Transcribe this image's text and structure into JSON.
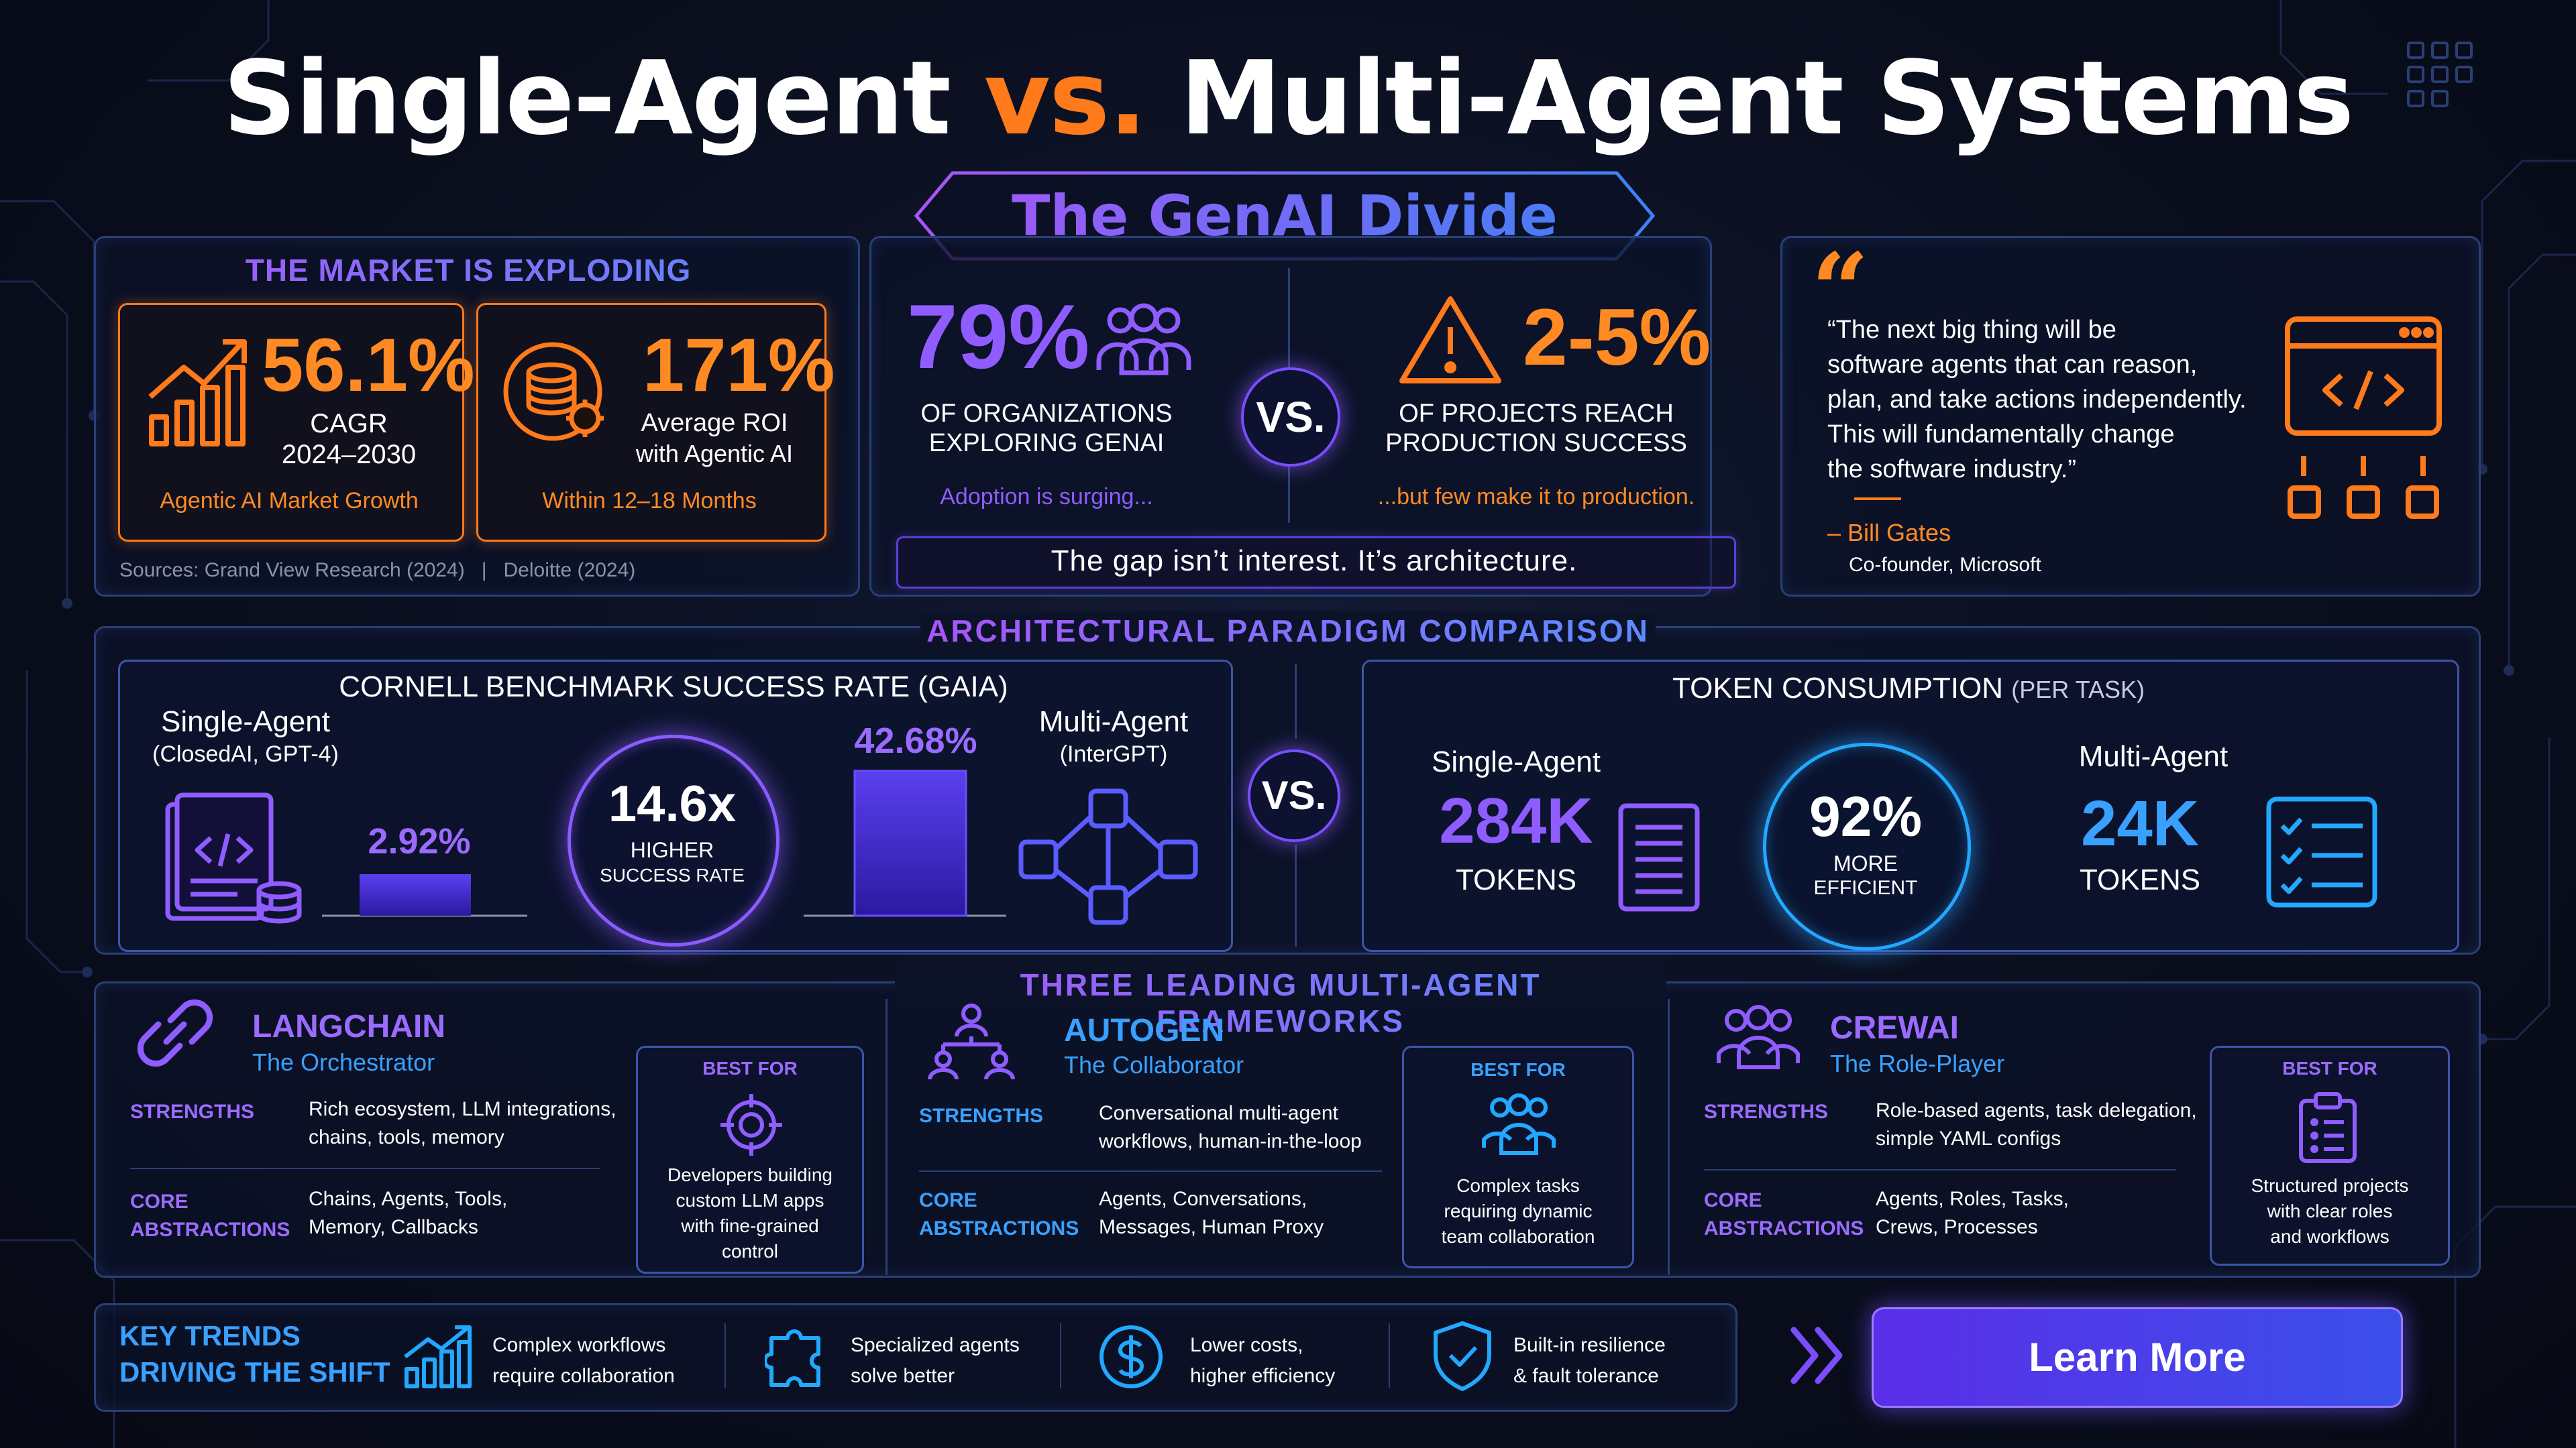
{
  "title": {
    "part1": "Single-Agent ",
    "vs": "vs.",
    "part2": " Multi-Agent Systems"
  },
  "banner": {
    "text": "The GenAI Divide"
  },
  "market": {
    "title": "THE MARKET IS EXPLODING",
    "card1": {
      "value": "56.1%",
      "line1": "CAGR",
      "line2": "2024–2030",
      "caption": "Agentic AI Market Growth"
    },
    "card2": {
      "value": "171%",
      "line1": "Average ROI",
      "line2": "with Agentic AI",
      "caption": "Within 12–18 Months"
    },
    "sources": "Sources: Grand View Research (2024)   |   Deloitte (2024)"
  },
  "divide": {
    "left": {
      "value": "79%",
      "line1": "OF ORGANIZATIONS",
      "line2": "EXPLORING GENAI",
      "note": "Adoption is surging..."
    },
    "vs": "VS.",
    "right": {
      "value": "2-5%",
      "line1": "OF PROJECTS REACH",
      "line2": "PRODUCTION SUCCESS",
      "note": "...but few make it to production."
    },
    "footer": "The gap isn’t interest. It’s architecture."
  },
  "quote": {
    "mark": "“",
    "lines": [
      "“The next big thing will be",
      "software agents that can reason,",
      "plan, and take actions independently.",
      "This will fundamentally change",
      "the software industry.”"
    ],
    "author": "– Bill Gates",
    "role": "Co-founder, Microsoft"
  },
  "paradigm": {
    "title": "ARCHITECTURAL PARADIGM COMPARISON",
    "benchmark": {
      "title": "CORNELL BENCHMARK SUCCESS RATE (GAIA)",
      "single_label": "Single-Agent",
      "single_sub": "(ClosedAI, GPT-4)",
      "single_value": "2.92%",
      "ring_value": "14.6x",
      "ring_line1": "HIGHER",
      "ring_line2": "SUCCESS RATE",
      "multi_value": "42.68%",
      "multi_label": "Multi-Agent",
      "multi_sub": "(InterGPT)"
    },
    "vs": "VS.",
    "tokens": {
      "title": "TOKEN CONSUMPTION",
      "title_sub": "(PER TASK)",
      "single_label": "Single-Agent",
      "single_value": "284K",
      "single_unit": "TOKENS",
      "ring_value": "92%",
      "ring_line1": "MORE",
      "ring_line2": "EFFICIENT",
      "multi_label": "Multi-Agent",
      "multi_value": "24K",
      "multi_unit": "TOKENS"
    }
  },
  "frameworks": {
    "title": "THREE LEADING MULTI-AGENT FRAMEWORKS",
    "items": [
      {
        "name": "LANGCHAIN",
        "tagline": "The Orchestrator",
        "strengths_label": "STRENGTHS",
        "strengths": [
          "Rich ecosystem, LLM integrations,",
          "chains, tools, memory"
        ],
        "core_label1": "CORE",
        "core_label2": "ABSTRACTIONS",
        "core": [
          "Chains, Agents, Tools,",
          "Memory, Callbacks"
        ],
        "best_label": "BEST FOR",
        "best": [
          "Developers building",
          "custom LLM apps",
          "with fine-grained",
          "control"
        ]
      },
      {
        "name": "AUTOGEN",
        "tagline": "The Collaborator",
        "strengths_label": "STRENGTHS",
        "strengths": [
          "Conversational multi-agent",
          "workflows, human-in-the-loop"
        ],
        "core_label1": "CORE",
        "core_label2": "ABSTRACTIONS",
        "core": [
          "Agents, Conversations,",
          "Messages, Human Proxy"
        ],
        "best_label": "BEST FOR",
        "best": [
          "Complex tasks",
          "requiring dynamic",
          "team collaboration"
        ]
      },
      {
        "name": "CREWAI",
        "tagline": "The Role-Player",
        "strengths_label": "STRENGTHS",
        "strengths": [
          "Role-based agents, task delegation,",
          "simple YAML configs"
        ],
        "core_label1": "CORE",
        "core_label2": "ABSTRACTIONS",
        "core": [
          "Agents, Roles, Tasks,",
          "Crews, Processes"
        ],
        "best_label": "BEST FOR",
        "best": [
          "Structured projects",
          "with clear roles",
          "and workflows"
        ]
      }
    ]
  },
  "trends": {
    "title1": "KEY TRENDS",
    "title2": "DRIVING THE SHIFT",
    "items": [
      {
        "icon": "growth-chart-icon",
        "line1": "Complex workflows",
        "line2": "require collaboration"
      },
      {
        "icon": "puzzle-icon",
        "line1": "Specialized agents",
        "line2": "solve better"
      },
      {
        "icon": "dollar-icon",
        "line1": "Lower costs,",
        "line2": "higher efficiency"
      },
      {
        "icon": "shield-check-icon",
        "line1": "Built-in resilience",
        "line2": "& fault tolerance"
      }
    ]
  },
  "cta": {
    "label": "Learn More"
  },
  "colors": {
    "orange": "#ff7a1a",
    "purple": "#8f5cff",
    "blue": "#3aa0ff",
    "panel_border": "#2a3f78"
  }
}
